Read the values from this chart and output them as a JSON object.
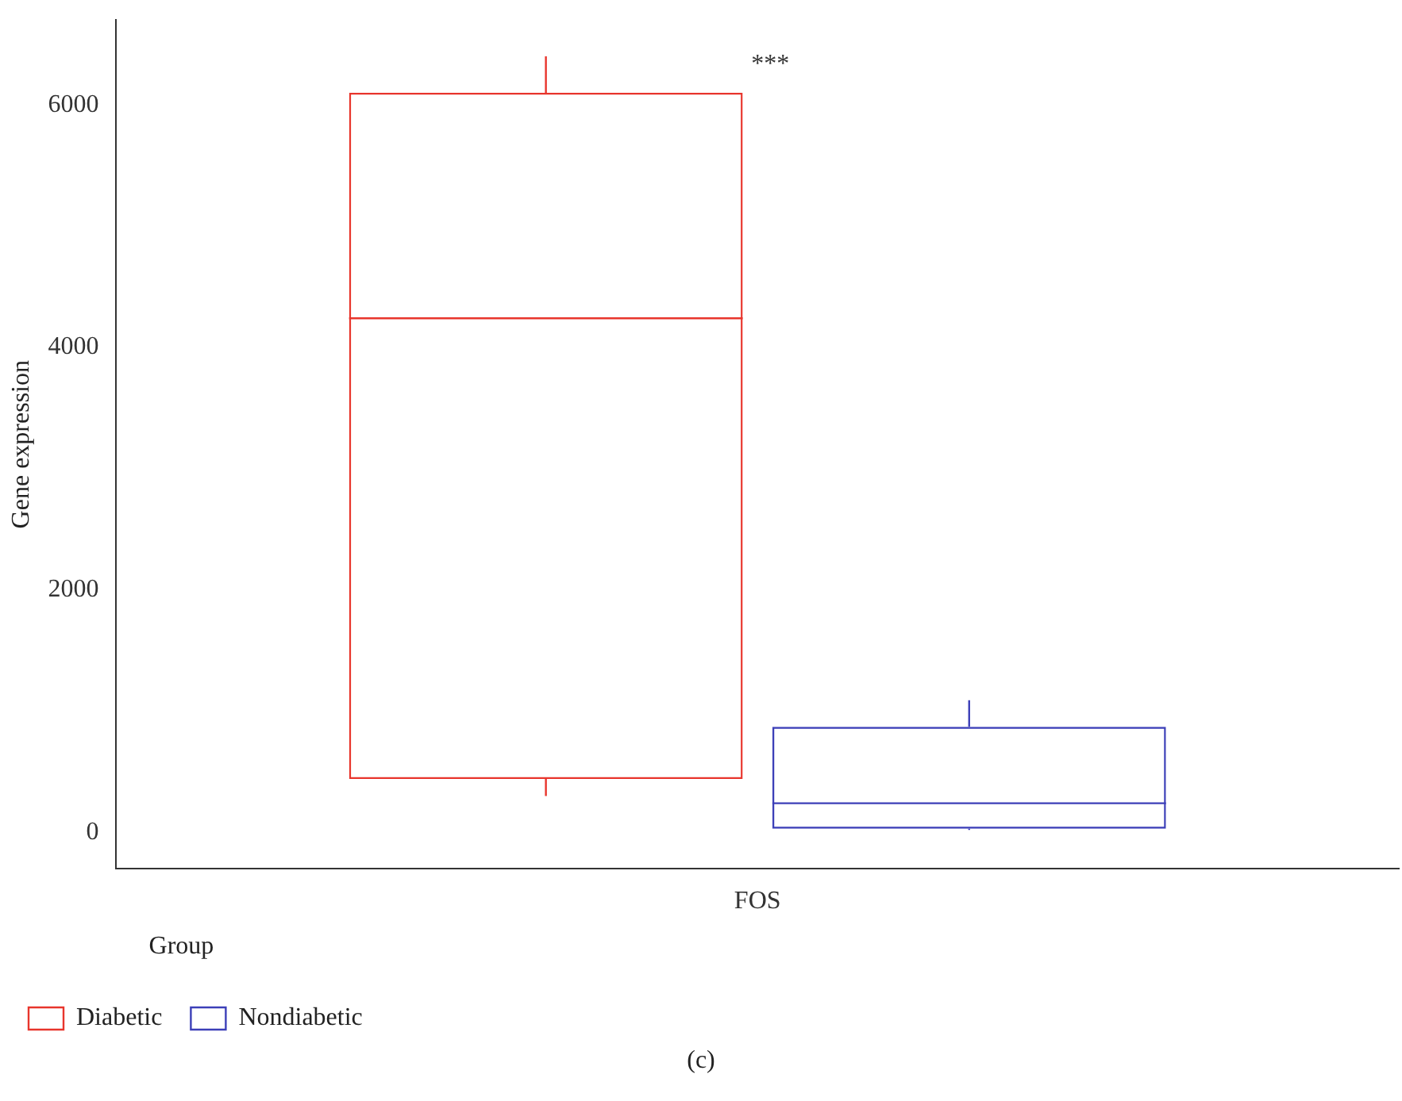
{
  "chart_data": {
    "type": "box",
    "ylabel": "Gene expression",
    "legend_title": "Group",
    "categories": [
      "FOS"
    ],
    "series": [
      {
        "name": "Diabetic",
        "color": "#e8352c",
        "boxes": [
          {
            "low": 300,
            "q1": 440,
            "median": 4240,
            "q3": 6100,
            "high": 6400
          }
        ]
      },
      {
        "name": "Nondiabetic",
        "color": "#3c3fb8",
        "boxes": [
          {
            "low": 20,
            "q1": 30,
            "median": 240,
            "q3": 870,
            "high": 1090
          }
        ]
      }
    ],
    "ylim": [
      -300,
      6700
    ],
    "yticks": [
      0,
      2000,
      4000,
      6000
    ],
    "grid": false,
    "legend": "bottom left",
    "annotations": [
      "***",
      "(c)"
    ]
  }
}
